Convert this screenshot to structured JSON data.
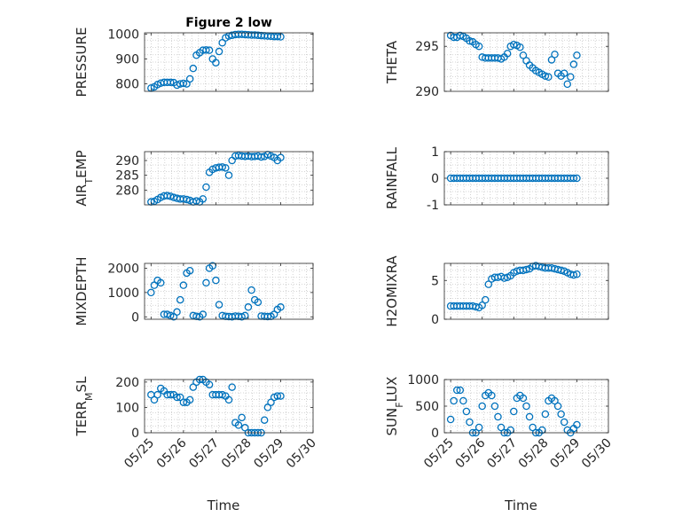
{
  "chart_data": [
    {
      "type": "scatter",
      "title": "Figure 2 low",
      "ylabel": "PRESSURE",
      "xlabel": "",
      "ylim": [
        770,
        1005
      ],
      "yticks": [
        800,
        900,
        1000
      ],
      "xticks": [],
      "series": [
        {
          "marker": "open-circle",
          "x": [
            0.0,
            0.1,
            0.2,
            0.3,
            0.4,
            0.5,
            0.6,
            0.7,
            0.8,
            0.9,
            1.0,
            1.1,
            1.2,
            1.3,
            1.4,
            1.5,
            1.6,
            1.7,
            1.8,
            1.9,
            2.0,
            2.1,
            2.2,
            2.3,
            2.4,
            2.5,
            2.6,
            2.7,
            2.8,
            2.9,
            3.0,
            3.1,
            3.2,
            3.3,
            3.4,
            3.5,
            3.6,
            3.7,
            3.8,
            3.9,
            4.0
          ],
          "y": [
            783,
            788,
            797,
            803,
            806,
            806,
            806,
            805,
            795,
            800,
            802,
            800,
            820,
            862,
            915,
            925,
            935,
            936,
            935,
            900,
            885,
            930,
            965,
            985,
            992,
            995,
            998,
            999,
            999,
            998,
            997,
            996,
            996,
            995,
            994,
            993,
            992,
            991,
            990,
            990,
            989
          ]
        }
      ]
    },
    {
      "type": "scatter",
      "title": "",
      "ylabel": "THETA",
      "xlabel": "",
      "ylim": [
        290,
        296.5
      ],
      "yticks": [
        290,
        295
      ],
      "xticks": [],
      "series": [
        {
          "marker": "open-circle",
          "x": [
            0.0,
            0.1,
            0.2,
            0.3,
            0.4,
            0.5,
            0.6,
            0.7,
            0.8,
            0.9,
            1.0,
            1.1,
            1.2,
            1.3,
            1.4,
            1.5,
            1.6,
            1.7,
            1.8,
            1.9,
            2.0,
            2.1,
            2.2,
            2.3,
            2.4,
            2.5,
            2.6,
            2.7,
            2.8,
            2.9,
            3.0,
            3.1,
            3.2,
            3.3,
            3.4,
            3.5,
            3.6,
            3.7,
            3.8,
            3.9,
            4.0
          ],
          "y": [
            296.2,
            296.0,
            296.0,
            296.2,
            296.1,
            295.9,
            295.6,
            295.5,
            295.2,
            295.0,
            293.8,
            293.7,
            293.7,
            293.7,
            293.7,
            293.7,
            293.6,
            293.8,
            294.2,
            295.0,
            295.2,
            295.1,
            294.9,
            294.0,
            293.4,
            292.9,
            292.6,
            292.3,
            292.1,
            291.9,
            291.7,
            291.6,
            293.5,
            294.1,
            292.0,
            291.7,
            292.0,
            290.8,
            291.6,
            293.0,
            294.0
          ]
        }
      ]
    },
    {
      "type": "scatter",
      "title": "",
      "ylabel": "AIR_TEMP",
      "xlabel": "",
      "ylim": [
        275,
        293
      ],
      "yticks": [
        280,
        285,
        290
      ],
      "xticks": [],
      "series": [
        {
          "marker": "open-circle",
          "x": [
            0.0,
            0.1,
            0.2,
            0.3,
            0.4,
            0.5,
            0.6,
            0.7,
            0.8,
            0.9,
            1.0,
            1.1,
            1.2,
            1.3,
            1.4,
            1.5,
            1.6,
            1.7,
            1.8,
            1.9,
            2.0,
            2.1,
            2.2,
            2.3,
            2.4,
            2.5,
            2.6,
            2.7,
            2.8,
            2.9,
            3.0,
            3.1,
            3.2,
            3.3,
            3.4,
            3.5,
            3.6,
            3.7,
            3.8,
            3.9,
            4.0
          ],
          "y": [
            276.0,
            276.2,
            276.8,
            277.5,
            278.0,
            278.1,
            277.9,
            277.5,
            277.2,
            277.0,
            277.0,
            276.8,
            276.5,
            276.0,
            276.3,
            276.0,
            277.0,
            281.0,
            286.0,
            287.0,
            287.5,
            287.7,
            287.8,
            287.5,
            285.0,
            290.0,
            291.5,
            291.7,
            291.5,
            291.4,
            291.5,
            291.3,
            291.4,
            291.5,
            291.2,
            291.4,
            292.0,
            291.5,
            291.0,
            290.0,
            291.0
          ]
        }
      ]
    },
    {
      "type": "scatter",
      "title": "",
      "ylabel": "RAINFALL",
      "xlabel": "",
      "ylim": [
        -1,
        1
      ],
      "yticks": [
        -1,
        0,
        1
      ],
      "xticks": [],
      "series": [
        {
          "marker": "open-circle",
          "x": [
            0.0,
            0.1,
            0.2,
            0.3,
            0.4,
            0.5,
            0.6,
            0.7,
            0.8,
            0.9,
            1.0,
            1.1,
            1.2,
            1.3,
            1.4,
            1.5,
            1.6,
            1.7,
            1.8,
            1.9,
            2.0,
            2.1,
            2.2,
            2.3,
            2.4,
            2.5,
            2.6,
            2.7,
            2.8,
            2.9,
            3.0,
            3.1,
            3.2,
            3.3,
            3.4,
            3.5,
            3.6,
            3.7,
            3.8,
            3.9,
            4.0
          ],
          "y": [
            0,
            0,
            0,
            0,
            0,
            0,
            0,
            0,
            0,
            0,
            0,
            0,
            0,
            0,
            0,
            0,
            0,
            0,
            0,
            0,
            0,
            0,
            0,
            0,
            0,
            0,
            0,
            0,
            0,
            0,
            0,
            0,
            0,
            0,
            0,
            0,
            0,
            0,
            0,
            0,
            0
          ]
        }
      ]
    },
    {
      "type": "scatter",
      "title": "",
      "ylabel": "MIXDEPTH",
      "xlabel": "",
      "ylim": [
        -100,
        2200
      ],
      "yticks": [
        0,
        1000,
        2000
      ],
      "xticks": [],
      "series": [
        {
          "marker": "open-circle",
          "x": [
            0.0,
            0.1,
            0.2,
            0.3,
            0.4,
            0.5,
            0.6,
            0.7,
            0.8,
            0.9,
            1.0,
            1.1,
            1.2,
            1.3,
            1.4,
            1.5,
            1.6,
            1.7,
            1.8,
            1.9,
            2.0,
            2.1,
            2.2,
            2.3,
            2.4,
            2.5,
            2.6,
            2.7,
            2.8,
            2.9,
            3.0,
            3.1,
            3.2,
            3.3,
            3.4,
            3.5,
            3.6,
            3.7,
            3.8,
            3.9,
            4.0
          ],
          "y": [
            1000,
            1300,
            1500,
            1400,
            100,
            100,
            50,
            0,
            200,
            700,
            1300,
            1800,
            1900,
            50,
            20,
            0,
            100,
            1400,
            2000,
            2100,
            1500,
            500,
            50,
            20,
            10,
            0,
            30,
            20,
            0,
            50,
            400,
            1100,
            700,
            600,
            30,
            20,
            10,
            20,
            100,
            300,
            400
          ]
        }
      ]
    },
    {
      "type": "scatter",
      "title": "",
      "ylabel": "H2OMIXRA",
      "xlabel": "",
      "ylim": [
        0,
        7.2
      ],
      "yticks": [
        0,
        5
      ],
      "xticks": [],
      "series": [
        {
          "marker": "open-circle",
          "x": [
            0.0,
            0.1,
            0.2,
            0.3,
            0.4,
            0.5,
            0.6,
            0.7,
            0.8,
            0.9,
            1.0,
            1.1,
            1.2,
            1.3,
            1.4,
            1.5,
            1.6,
            1.7,
            1.8,
            1.9,
            2.0,
            2.1,
            2.2,
            2.3,
            2.4,
            2.5,
            2.6,
            2.7,
            2.8,
            2.9,
            3.0,
            3.1,
            3.2,
            3.3,
            3.4,
            3.5,
            3.6,
            3.7,
            3.8,
            3.9,
            4.0
          ],
          "y": [
            1.7,
            1.7,
            1.7,
            1.7,
            1.7,
            1.7,
            1.7,
            1.7,
            1.6,
            1.5,
            1.8,
            2.5,
            4.5,
            5.2,
            5.4,
            5.4,
            5.5,
            5.3,
            5.4,
            5.6,
            6.0,
            6.2,
            6.3,
            6.3,
            6.4,
            6.5,
            6.8,
            6.9,
            6.8,
            6.7,
            6.6,
            6.6,
            6.6,
            6.5,
            6.4,
            6.3,
            6.2,
            6.0,
            5.8,
            5.7,
            5.8
          ]
        }
      ]
    },
    {
      "type": "scatter",
      "title": "",
      "ylabel": "TERR_MSL",
      "xlabel": "Time",
      "ylim": [
        0,
        210
      ],
      "yticks": [
        0,
        100,
        200
      ],
      "xticks": [
        "05/25",
        "05/26",
        "05/27",
        "05/28",
        "05/29",
        "05/30"
      ],
      "series": [
        {
          "marker": "open-circle",
          "x": [
            0.0,
            0.1,
            0.2,
            0.3,
            0.4,
            0.5,
            0.6,
            0.7,
            0.8,
            0.9,
            1.0,
            1.1,
            1.2,
            1.3,
            1.4,
            1.5,
            1.6,
            1.7,
            1.8,
            1.9,
            2.0,
            2.1,
            2.2,
            2.3,
            2.4,
            2.5,
            2.6,
            2.7,
            2.8,
            2.9,
            3.0,
            3.1,
            3.2,
            3.3,
            3.4,
            3.5,
            3.6,
            3.7,
            3.8,
            3.9,
            4.0
          ],
          "y": [
            150,
            130,
            150,
            175,
            165,
            150,
            150,
            150,
            140,
            140,
            120,
            120,
            130,
            180,
            200,
            210,
            210,
            200,
            190,
            150,
            150,
            150,
            150,
            145,
            130,
            180,
            40,
            30,
            60,
            20,
            0,
            0,
            0,
            0,
            0,
            50,
            100,
            120,
            140,
            145,
            145
          ]
        }
      ]
    },
    {
      "type": "scatter",
      "title": "",
      "ylabel": "SUN_FLUX",
      "xlabel": "Time",
      "ylim": [
        0,
        1000
      ],
      "yticks": [
        0,
        500,
        1000
      ],
      "xticks": [
        "05/25",
        "05/26",
        "05/27",
        "05/28",
        "05/29",
        "05/30"
      ],
      "series": [
        {
          "marker": "open-circle",
          "x": [
            0.0,
            0.1,
            0.2,
            0.3,
            0.4,
            0.5,
            0.6,
            0.7,
            0.8,
            0.9,
            1.0,
            1.1,
            1.2,
            1.3,
            1.4,
            1.5,
            1.6,
            1.7,
            1.8,
            1.9,
            2.0,
            2.1,
            2.2,
            2.3,
            2.4,
            2.5,
            2.6,
            2.7,
            2.8,
            2.9,
            3.0,
            3.1,
            3.2,
            3.3,
            3.4,
            3.5,
            3.6,
            3.7,
            3.8,
            3.9,
            4.0
          ],
          "y": [
            250,
            600,
            800,
            800,
            600,
            400,
            200,
            0,
            0,
            100,
            500,
            700,
            750,
            700,
            500,
            300,
            100,
            0,
            0,
            50,
            400,
            650,
            700,
            650,
            500,
            300,
            100,
            0,
            0,
            50,
            350,
            600,
            650,
            600,
            500,
            350,
            200,
            50,
            0,
            80,
            150
          ]
        }
      ]
    }
  ]
}
